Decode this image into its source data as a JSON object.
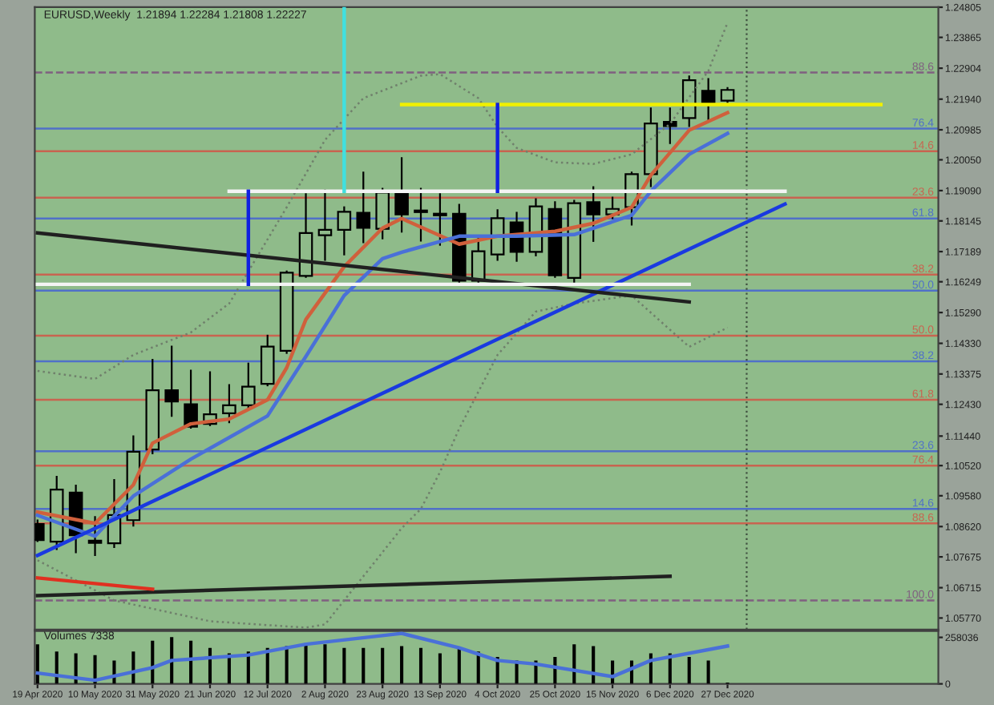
{
  "chart_data": [
    {
      "type": "candlestick",
      "title": "EURUSD,Weekly  1.21894 1.22284 1.21808 1.22227",
      "color": "#000000",
      "x": [
        "2020-04-19",
        "2020-04-26",
        "2020-05-03",
        "2020-05-10",
        "2020-05-17",
        "2020-05-24",
        "2020-05-31",
        "2020-06-07",
        "2020-06-14",
        "2020-06-21",
        "2020-06-28",
        "2020-07-05",
        "2020-07-12",
        "2020-07-19",
        "2020-07-26",
        "2020-08-02",
        "2020-08-09",
        "2020-08-16",
        "2020-08-23",
        "2020-08-30",
        "2020-09-06",
        "2020-09-13",
        "2020-09-20",
        "2020-09-27",
        "2020-10-04",
        "2020-10-11",
        "2020-10-18",
        "2020-10-25",
        "2020-11-01",
        "2020-11-08",
        "2020-11-15",
        "2020-11-22",
        "2020-11-29",
        "2020-12-06",
        "2020-12-13",
        "2020-12-20",
        "2020-12-27"
      ],
      "ohlc": [
        [
          1.087,
          1.0881,
          1.0817,
          1.082
        ],
        [
          1.0815,
          1.1017,
          1.0792,
          1.0977
        ],
        [
          1.0968,
          1.099,
          1.0782,
          1.0835
        ],
        [
          1.0818,
          1.0892,
          1.0773,
          1.0811
        ],
        [
          1.081,
          1.1007,
          1.0798,
          1.0898
        ],
        [
          1.0882,
          1.1143,
          1.0865,
          1.1095
        ],
        [
          1.1102,
          1.1382,
          1.109,
          1.1287
        ],
        [
          1.1287,
          1.1423,
          1.1207,
          1.1252
        ],
        [
          1.1243,
          1.1348,
          1.117,
          1.1173
        ],
        [
          1.1182,
          1.1343,
          1.1178,
          1.1212
        ],
        [
          1.1215,
          1.1303,
          1.1187,
          1.124
        ],
        [
          1.124,
          1.137,
          1.1232,
          1.1298
        ],
        [
          1.1307,
          1.1457,
          1.1302,
          1.1423
        ],
        [
          1.141,
          1.1657,
          1.1403,
          1.1653
        ],
        [
          1.1643,
          1.1898,
          1.164,
          1.1777
        ],
        [
          1.177,
          1.191,
          1.1693,
          1.1787
        ],
        [
          1.1787,
          1.1857,
          1.171,
          1.1843
        ],
        [
          1.184,
          1.1965,
          1.1748,
          1.1793
        ],
        [
          1.179,
          1.1915,
          1.176,
          1.1903
        ],
        [
          1.1902,
          1.201,
          1.1781,
          1.1835
        ],
        [
          1.1847,
          1.1915,
          1.1753,
          1.1842
        ],
        [
          1.1837,
          1.1898,
          1.174,
          1.1832
        ],
        [
          1.1837,
          1.1865,
          1.1623,
          1.1628
        ],
        [
          1.1628,
          1.1765,
          1.1615,
          1.172
        ],
        [
          1.171,
          1.1848,
          1.1693,
          1.1823
        ],
        [
          1.181,
          1.184,
          1.169,
          1.1718
        ],
        [
          1.1718,
          1.1882,
          1.1707,
          1.186
        ],
        [
          1.1852,
          1.1873,
          1.164,
          1.1645
        ],
        [
          1.1637,
          1.1877,
          1.1623,
          1.187
        ],
        [
          1.1873,
          1.192,
          1.1752,
          1.1835
        ],
        [
          1.1835,
          1.1887,
          1.1823,
          1.1852
        ],
        [
          1.1857,
          1.1965,
          1.1803,
          1.196
        ],
        [
          1.196,
          1.2165,
          1.1923,
          1.2118
        ],
        [
          1.2123,
          1.2165,
          1.2057,
          1.211
        ],
        [
          1.2135,
          1.2265,
          1.211,
          1.2253
        ],
        [
          1.222,
          1.2257,
          1.2132,
          1.2182
        ],
        [
          1.21894,
          1.22284,
          1.21808,
          1.22227
        ]
      ],
      "series": [
        {
          "type": "line",
          "color": "#70806c",
          "line_style": "dotted",
          "x": [
            "2020-04-19",
            "2020-05-10",
            "2020-05-24",
            "2020-06-14",
            "2020-06-28",
            "2020-07-19",
            "2020-08-02",
            "2020-08-16",
            "2020-09-06",
            "2020-09-13",
            "2020-09-27",
            "2020-10-04",
            "2020-10-11",
            "2020-10-25",
            "2020-11-08",
            "2020-11-22",
            "2020-12-06",
            "2020-12-20",
            "2020-12-27"
          ],
          "values": [
            1.1347,
            1.1322,
            1.1397,
            1.1467,
            1.1557,
            1.1857,
            1.2067,
            1.2197,
            1.2267,
            1.2272,
            1.2197,
            1.2107,
            1.2042,
            1.1997,
            1.1992,
            1.2022,
            1.2117,
            1.2282,
            1.2432
          ]
        },
        {
          "type": "line",
          "color": "#70806c",
          "line_style": "dotted",
          "x": [
            "2020-04-19",
            "2020-05-17",
            "2020-06-21",
            "2020-07-26",
            "2020-08-02",
            "2020-08-09",
            "2020-08-23",
            "2020-08-30",
            "2020-09-06",
            "2020-09-13",
            "2020-09-20",
            "2020-09-27",
            "2020-10-04",
            "2020-10-18",
            "2020-11-01",
            "2020-11-22",
            "2020-12-13",
            "2020-12-27"
          ],
          "values": [
            1.0757,
            1.0632,
            1.0567,
            1.0547,
            1.0557,
            1.0632,
            1.0782,
            1.0857,
            1.0917,
            1.1032,
            1.1167,
            1.1282,
            1.1397,
            1.1532,
            1.1557,
            1.1582,
            1.1422,
            1.1482
          ]
        },
        {
          "type": "line",
          "color": "#d0603c",
          "x": [
            "2020-04-19",
            "2020-05-10",
            "2020-05-24",
            "2020-05-31",
            "2020-06-14",
            "2020-06-28",
            "2020-07-12",
            "2020-07-19",
            "2020-07-26",
            "2020-08-09",
            "2020-08-23",
            "2020-08-30",
            "2020-09-20",
            "2020-10-04",
            "2020-10-25",
            "2020-11-08",
            "2020-11-22",
            "2020-11-29",
            "2020-12-13",
            "2020-12-27"
          ],
          "values": [
            1.0907,
            1.0872,
            1.0992,
            1.1122,
            1.1182,
            1.1197,
            1.1257,
            1.1357,
            1.1507,
            1.1672,
            1.1792,
            1.1822,
            1.1742,
            1.1767,
            1.1782,
            1.1807,
            1.1857,
            1.1957,
            1.2097,
            1.2152
          ]
        },
        {
          "type": "line",
          "color": "#4a70d8",
          "x": [
            "2020-04-19",
            "2020-05-10",
            "2020-05-24",
            "2020-06-14",
            "2020-07-12",
            "2020-07-26",
            "2020-08-09",
            "2020-08-23",
            "2020-08-30",
            "2020-09-20",
            "2020-10-11",
            "2020-11-01",
            "2020-11-22",
            "2020-11-29",
            "2020-12-13",
            "2020-12-27"
          ],
          "values": [
            1.0897,
            1.0832,
            1.0957,
            1.1072,
            1.1207,
            1.1392,
            1.1582,
            1.1697,
            1.1717,
            1.1767,
            1.1767,
            1.1772,
            1.1832,
            1.1907,
            1.2022,
            1.2087
          ]
        },
        {
          "type": "line",
          "color": "#1a3ae0",
          "x": [
            "2020-04-19",
            "2021-01-17"
          ],
          "values": [
            1.0772,
            1.1867
          ]
        },
        {
          "type": "line",
          "color": "#202020",
          "x": [
            "2020-04-19",
            "2020-12-13"
          ],
          "values": [
            1.1777,
            1.1562
          ]
        },
        {
          "type": "line",
          "color": "#202020",
          "x": [
            "2020-04-19",
            "2020-12-06"
          ],
          "values": [
            1.0647,
            1.0707
          ]
        },
        {
          "type": "line",
          "color": "#e03020",
          "x": [
            "2020-04-19",
            "2020-05-31"
          ],
          "values": [
            1.0702,
            1.0667
          ]
        },
        {
          "type": "line",
          "color": "#f4f4f4",
          "x": [
            "2020-06-28",
            "2021-01-17"
          ],
          "values": [
            1.1907,
            1.1907
          ]
        },
        {
          "type": "line",
          "color": "#f4f4f4",
          "x": [
            "2020-04-19",
            "2020-12-13"
          ],
          "values": [
            1.1617,
            1.1617
          ]
        },
        {
          "type": "line",
          "color": "#f0f000",
          "x": [
            "2020-08-30",
            "2021-02-21"
          ],
          "values": [
            1.2177,
            1.2177
          ]
        },
        {
          "type": "line",
          "color": "#1020e0",
          "x": [
            "2020-07-05",
            "2020-07-05"
          ],
          "values": [
            1.1617,
            1.1907
          ]
        },
        {
          "type": "line",
          "color": "#1020e0",
          "x": [
            "2020-10-04",
            "2020-10-04"
          ],
          "values": [
            1.1907,
            1.2177
          ]
        },
        {
          "type": "line",
          "color": "#40e0e0",
          "x": [
            "2020-08-09",
            "2020-08-09"
          ],
          "values": [
            1.1907,
            1.2481
          ]
        }
      ],
      "ref_lines": [
        {
          "axis": "y",
          "value": 1.2277,
          "color": "#806080",
          "line_style": "dashed"
        },
        {
          "axis": "y",
          "value": 1.2102,
          "color": "#5070c8"
        },
        {
          "axis": "y",
          "value": 1.2032,
          "color": "#c86450"
        },
        {
          "axis": "y",
          "value": 1.1887,
          "color": "#c86450"
        },
        {
          "axis": "y",
          "value": 1.1822,
          "color": "#5070c8"
        },
        {
          "axis": "y",
          "value": 1.1647,
          "color": "#c86450"
        },
        {
          "axis": "y",
          "value": 1.1597,
          "color": "#5070c8"
        },
        {
          "axis": "y",
          "value": 1.1457,
          "color": "#c86450"
        },
        {
          "axis": "y",
          "value": 1.1377,
          "color": "#5070c8"
        },
        {
          "axis": "y",
          "value": 1.1257,
          "color": "#c86450"
        },
        {
          "axis": "y",
          "value": 1.1097,
          "color": "#5070c8"
        },
        {
          "axis": "y",
          "value": 1.1052,
          "color": "#c86450"
        },
        {
          "axis": "y",
          "value": 1.0917,
          "color": "#5070c8"
        },
        {
          "axis": "y",
          "value": 1.0872,
          "color": "#c86450"
        },
        {
          "axis": "y",
          "value": 1.0632,
          "color": "#806080",
          "line_style": "dashed"
        },
        {
          "axis": "x",
          "value": "2021-01-03",
          "color": "#405040",
          "line_style": "dotted"
        }
      ],
      "annotations": [
        "88.6",
        "76.4",
        "14.6",
        "23.6",
        "61.8",
        "38.2",
        "50.0",
        "50.0",
        "38.2",
        "61.8",
        "23.6",
        "76.4",
        "14.6",
        "88.6",
        "100.0"
      ],
      "xlim": [
        "2020-04-18",
        "2021-03-14"
      ],
      "ylim": [
        1.0541,
        1.2481
      ],
      "yticks": [
        {
          "value": 1.24805,
          "label": "1.24805"
        },
        {
          "value": 1.23865,
          "label": "1.23865"
        },
        {
          "value": 1.22904,
          "label": "1.22904"
        },
        {
          "value": 1.2194,
          "label": "1.21940"
        },
        {
          "value": 1.20985,
          "label": "1.20985"
        },
        {
          "value": 1.2005,
          "label": "1.20050"
        },
        {
          "value": 1.1909,
          "label": "1.19090"
        },
        {
          "value": 1.18145,
          "label": "1.18145"
        },
        {
          "value": 1.17189,
          "label": "1.17189"
        },
        {
          "value": 1.16249,
          "label": "1.16249"
        },
        {
          "value": 1.1529,
          "label": "1.15290"
        },
        {
          "value": 1.1433,
          "label": "1.14330"
        },
        {
          "value": 1.13375,
          "label": "1.13375"
        },
        {
          "value": 1.1243,
          "label": "1.12430"
        },
        {
          "value": 1.1144,
          "label": "1.11440"
        },
        {
          "value": 1.1052,
          "label": "1.10520"
        },
        {
          "value": 1.0958,
          "label": "1.09580"
        },
        {
          "value": 1.0862,
          "label": "1.08620"
        },
        {
          "value": 1.07675,
          "label": "1.07675"
        },
        {
          "value": 1.06715,
          "label": "1.06715"
        },
        {
          "value": 1.0577,
          "label": "1.05770"
        }
      ],
      "tick_labels": "y"
    },
    {
      "type": "bar",
      "title": "Volumes 7338",
      "color": "#000000",
      "x": [
        "2020-04-19",
        "2020-04-26",
        "2020-05-03",
        "2020-05-10",
        "2020-05-17",
        "2020-05-24",
        "2020-05-31",
        "2020-06-07",
        "2020-06-14",
        "2020-06-21",
        "2020-06-28",
        "2020-07-05",
        "2020-07-12",
        "2020-07-19",
        "2020-07-26",
        "2020-08-02",
        "2020-08-09",
        "2020-08-16",
        "2020-08-23",
        "2020-08-30",
        "2020-09-06",
        "2020-09-13",
        "2020-09-20",
        "2020-09-27",
        "2020-10-04",
        "2020-10-11",
        "2020-10-18",
        "2020-10-25",
        "2020-11-01",
        "2020-11-08",
        "2020-11-15",
        "2020-11-22",
        "2020-11-29",
        "2020-12-06",
        "2020-12-13",
        "2020-12-20",
        "2020-12-27"
      ],
      "values": [
        220000,
        180000,
        170000,
        160000,
        130000,
        180000,
        240000,
        260000,
        240000,
        200000,
        170000,
        180000,
        200000,
        210000,
        220000,
        220000,
        200000,
        200000,
        200000,
        210000,
        200000,
        170000,
        200000,
        180000,
        150000,
        130000,
        130000,
        150000,
        220000,
        210000,
        130000,
        130000,
        170000,
        170000,
        150000,
        130000,
        7338
      ],
      "series": [
        {
          "type": "line",
          "color": "#4a70d8",
          "x": [
            "2020-04-19",
            "2020-05-10",
            "2020-05-31",
            "2020-06-07",
            "2020-07-05",
            "2020-07-26",
            "2020-08-30",
            "2020-09-20",
            "2020-10-04",
            "2020-10-18",
            "2020-11-15",
            "2020-11-29",
            "2020-12-27"
          ],
          "values": [
            60000,
            20000,
            90000,
            130000,
            160000,
            220000,
            280000,
            200000,
            130000,
            110000,
            40000,
            130000,
            210000
          ]
        }
      ],
      "xlim": [
        "2020-04-18",
        "2021-03-14"
      ],
      "ylim": [
        0,
        293600
      ],
      "yticks": [
        0,
        258036
      ],
      "xticks": [
        {
          "value": "2020-04-19",
          "label": "19 Apr 2020"
        },
        {
          "value": "2020-05-10",
          "label": "10 May 2020"
        },
        {
          "value": "2020-05-31",
          "label": "31 May 2020"
        },
        {
          "value": "2020-06-21",
          "label": "21 Jun 2020"
        },
        {
          "value": "2020-07-12",
          "label": "12 Jul 2020"
        },
        {
          "value": "2020-08-02",
          "label": "2 Aug 2020"
        },
        {
          "value": "2020-08-23",
          "label": "23 Aug 2020"
        },
        {
          "value": "2020-09-13",
          "label": "13 Sep 2020"
        },
        {
          "value": "2020-10-04",
          "label": "4 Oct 2020"
        },
        {
          "value": "2020-10-25",
          "label": "25 Oct 2020"
        },
        {
          "value": "2020-11-15",
          "label": "15 Nov 2020"
        },
        {
          "value": "2020-12-06",
          "label": "6 Dec 2020"
        },
        {
          "value": "2020-12-27",
          "label": "27 Dec 2020"
        }
      ]
    }
  ]
}
